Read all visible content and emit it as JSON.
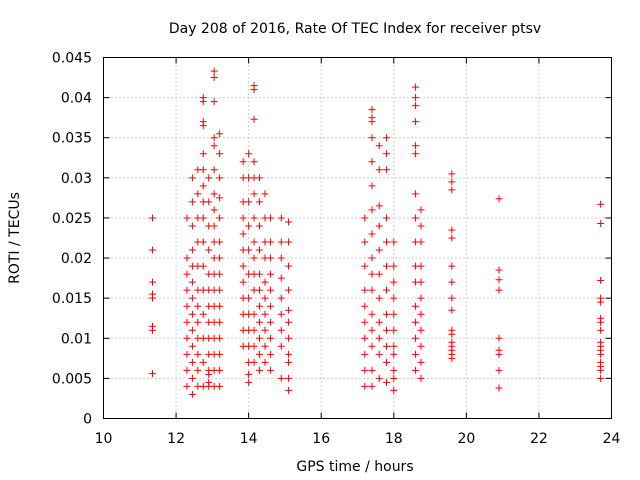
{
  "chart_data": {
    "type": "scatter",
    "title": "Day 208 of 2016, Rate Of TEC Index for receiver ptsv",
    "xlabel": "GPS time / hours",
    "ylabel": "ROTI / TECUs",
    "xlim": [
      10,
      24
    ],
    "ylim": [
      0,
      0.045
    ],
    "xticks": [
      10,
      12,
      14,
      16,
      18,
      20,
      22,
      24
    ],
    "xtick_labels": [
      "10",
      "12",
      "14",
      "16",
      "18",
      "20",
      "22",
      "24"
    ],
    "yticks": [
      0,
      0.005,
      0.01,
      0.015,
      0.02,
      0.025,
      0.03,
      0.035,
      0.04,
      0.045
    ],
    "ytick_labels": [
      "0",
      "0.005",
      "0.01",
      "0.015",
      "0.02",
      "0.025",
      "0.03",
      "0.035",
      "0.04",
      "0.045"
    ],
    "grid": true,
    "marker": "+",
    "marker_color": "#ff0000",
    "series": [
      {
        "name": "ROTI",
        "x": [
          11.35,
          11.35,
          11.35,
          11.35,
          11.35,
          11.35,
          11.35,
          11.35,
          12.3,
          12.3,
          12.3,
          12.3,
          12.3,
          12.3,
          12.3,
          12.3,
          12.3,
          12.3,
          12.45,
          12.45,
          12.45,
          12.45,
          12.45,
          12.45,
          12.45,
          12.45,
          12.45,
          12.45,
          12.45,
          12.45,
          12.45,
          12.6,
          12.6,
          12.6,
          12.6,
          12.6,
          12.6,
          12.6,
          12.6,
          12.6,
          12.6,
          12.6,
          12.6,
          12.75,
          12.75,
          12.75,
          12.75,
          12.75,
          12.75,
          12.75,
          12.75,
          12.75,
          12.75,
          12.75,
          12.75,
          12.75,
          12.75,
          12.75,
          12.75,
          12.9,
          12.9,
          12.9,
          12.9,
          12.9,
          12.9,
          12.9,
          12.9,
          12.9,
          12.9,
          12.9,
          12.9,
          12.9,
          12.9,
          13.05,
          13.05,
          13.05,
          13.05,
          13.05,
          13.05,
          13.05,
          13.05,
          13.05,
          13.05,
          13.05,
          13.05,
          13.05,
          13.05,
          13.05,
          13.05,
          13.05,
          13.05,
          13.05,
          13.2,
          13.2,
          13.2,
          13.2,
          13.2,
          13.2,
          13.2,
          13.2,
          13.2,
          13.2,
          13.2,
          13.2,
          13.2,
          13.2,
          13.2,
          13.85,
          13.85,
          13.85,
          13.85,
          13.85,
          13.85,
          13.85,
          13.85,
          13.85,
          13.85,
          13.85,
          13.85,
          14.0,
          14.0,
          14.0,
          14.0,
          14.0,
          14.0,
          14.0,
          14.0,
          14.0,
          14.0,
          14.0,
          14.0,
          14.0,
          14.15,
          14.15,
          14.15,
          14.15,
          14.15,
          14.15,
          14.15,
          14.15,
          14.15,
          14.15,
          14.15,
          14.15,
          14.15,
          14.15,
          14.15,
          14.3,
          14.3,
          14.3,
          14.3,
          14.3,
          14.3,
          14.3,
          14.3,
          14.3,
          14.3,
          14.3,
          14.45,
          14.45,
          14.45,
          14.45,
          14.45,
          14.45,
          14.45,
          14.45,
          14.45,
          14.45,
          14.6,
          14.6,
          14.6,
          14.6,
          14.6,
          14.6,
          14.6,
          14.6,
          14.6,
          14.6,
          14.9,
          14.9,
          14.9,
          14.9,
          14.9,
          14.9,
          14.9,
          14.9,
          14.9,
          15.1,
          15.1,
          15.1,
          15.1,
          15.1,
          15.1,
          15.1,
          15.1,
          15.1,
          15.1,
          15.1,
          17.2,
          17.2,
          17.2,
          17.2,
          17.2,
          17.2,
          17.2,
          17.2,
          17.2,
          17.2,
          17.4,
          17.4,
          17.4,
          17.4,
          17.4,
          17.4,
          17.4,
          17.4,
          17.4,
          17.4,
          17.4,
          17.4,
          17.4,
          17.4,
          17.4,
          17.4,
          17.6,
          17.6,
          17.6,
          17.6,
          17.6,
          17.6,
          17.6,
          17.6,
          17.6,
          17.6,
          17.6,
          17.8,
          17.8,
          17.8,
          17.8,
          17.8,
          17.8,
          17.8,
          17.8,
          17.8,
          17.8,
          17.8,
          17.8,
          18.0,
          18.0,
          18.0,
          18.0,
          18.0,
          18.0,
          18.0,
          18.0,
          18.0,
          18.0,
          18.0,
          18.6,
          18.6,
          18.6,
          18.6,
          18.6,
          18.6,
          18.6,
          18.6,
          18.6,
          18.6,
          18.6,
          18.6,
          18.6,
          18.6,
          18.6,
          18.6,
          18.75,
          18.75,
          18.75,
          18.75,
          18.75,
          18.75,
          18.75,
          18.75,
          18.75,
          18.75,
          18.75,
          19.6,
          19.6,
          19.6,
          19.6,
          19.6,
          19.6,
          19.6,
          19.6,
          19.6,
          19.6,
          19.6,
          19.6,
          19.6,
          19.6,
          19.6,
          19.6,
          20.9,
          20.9,
          20.9,
          20.9,
          20.9,
          20.9,
          20.9,
          20.9,
          20.9,
          23.7,
          23.7,
          23.7,
          23.7,
          23.7,
          23.7,
          23.7,
          23.7,
          23.7,
          23.7,
          23.7,
          23.7,
          23.7,
          23.7,
          23.7,
          23.7
        ],
        "y": [
          0.025,
          0.021,
          0.017,
          0.0155,
          0.015,
          0.0115,
          0.011,
          0.0056,
          0.025,
          0.02,
          0.018,
          0.016,
          0.014,
          0.012,
          0.01,
          0.008,
          0.006,
          0.004,
          0.03,
          0.027,
          0.024,
          0.021,
          0.019,
          0.017,
          0.015,
          0.013,
          0.011,
          0.009,
          0.007,
          0.005,
          0.003,
          0.031,
          0.028,
          0.025,
          0.022,
          0.019,
          0.016,
          0.014,
          0.012,
          0.01,
          0.008,
          0.006,
          0.004,
          0.04,
          0.0395,
          0.037,
          0.0365,
          0.033,
          0.031,
          0.029,
          0.027,
          0.025,
          0.022,
          0.019,
          0.016,
          0.013,
          0.01,
          0.007,
          0.004,
          0.03,
          0.027,
          0.024,
          0.021,
          0.018,
          0.016,
          0.014,
          0.012,
          0.01,
          0.008,
          0.006,
          0.004,
          0.0045,
          0.0055,
          0.0433,
          0.0425,
          0.0395,
          0.035,
          0.034,
          0.031,
          0.028,
          0.026,
          0.024,
          0.022,
          0.02,
          0.018,
          0.016,
          0.014,
          0.012,
          0.01,
          0.008,
          0.006,
          0.004,
          0.0355,
          0.033,
          0.03,
          0.0275,
          0.025,
          0.022,
          0.02,
          0.018,
          0.016,
          0.014,
          0.012,
          0.01,
          0.008,
          0.006,
          0.004,
          0.032,
          0.03,
          0.027,
          0.025,
          0.023,
          0.021,
          0.019,
          0.017,
          0.015,
          0.013,
          0.011,
          0.009,
          0.033,
          0.03,
          0.027,
          0.024,
          0.021,
          0.018,
          0.015,
          0.013,
          0.011,
          0.009,
          0.007,
          0.0055,
          0.0045,
          0.0415,
          0.041,
          0.0373,
          0.032,
          0.03,
          0.028,
          0.025,
          0.022,
          0.02,
          0.018,
          0.016,
          0.013,
          0.011,
          0.009,
          0.007,
          0.03,
          0.027,
          0.024,
          0.021,
          0.018,
          0.016,
          0.014,
          0.012,
          0.01,
          0.008,
          0.006,
          0.028,
          0.025,
          0.022,
          0.02,
          0.017,
          0.015,
          0.013,
          0.011,
          0.009,
          0.007,
          0.025,
          0.022,
          0.02,
          0.018,
          0.016,
          0.014,
          0.012,
          0.01,
          0.008,
          0.006,
          0.025,
          0.022,
          0.02,
          0.0175,
          0.015,
          0.013,
          0.011,
          0.009,
          0.005,
          0.0245,
          0.022,
          0.019,
          0.016,
          0.0135,
          0.012,
          0.01,
          0.008,
          0.007,
          0.005,
          0.0035,
          0.025,
          0.022,
          0.019,
          0.016,
          0.014,
          0.012,
          0.01,
          0.008,
          0.006,
          0.004,
          0.0385,
          0.0375,
          0.037,
          0.035,
          0.032,
          0.029,
          0.026,
          0.023,
          0.02,
          0.018,
          0.016,
          0.013,
          0.011,
          0.009,
          0.006,
          0.004,
          0.034,
          0.031,
          0.0265,
          0.024,
          0.021,
          0.018,
          0.015,
          0.012,
          0.01,
          0.008,
          0.005,
          0.035,
          0.033,
          0.031,
          0.025,
          0.022,
          0.019,
          0.016,
          0.013,
          0.011,
          0.009,
          0.007,
          0.0045,
          0.022,
          0.019,
          0.017,
          0.015,
          0.013,
          0.011,
          0.009,
          0.008,
          0.006,
          0.005,
          0.0035,
          0.0413,
          0.04,
          0.039,
          0.037,
          0.034,
          0.033,
          0.028,
          0.025,
          0.022,
          0.019,
          0.017,
          0.014,
          0.012,
          0.01,
          0.008,
          0.006,
          0.026,
          0.024,
          0.022,
          0.019,
          0.017,
          0.015,
          0.013,
          0.011,
          0.009,
          0.007,
          0.005,
          0.0305,
          0.0295,
          0.0285,
          0.0235,
          0.0225,
          0.019,
          0.017,
          0.015,
          0.0135,
          0.011,
          0.0105,
          0.0095,
          0.009,
          0.0085,
          0.008,
          0.0075,
          0.0274,
          0.0185,
          0.0173,
          0.016,
          0.01,
          0.0085,
          0.008,
          0.006,
          0.0038,
          0.0267,
          0.0243,
          0.0172,
          0.015,
          0.0145,
          0.0125,
          0.012,
          0.011,
          0.0095,
          0.009,
          0.0085,
          0.008,
          0.007,
          0.0065,
          0.006,
          0.005
        ]
      }
    ]
  }
}
